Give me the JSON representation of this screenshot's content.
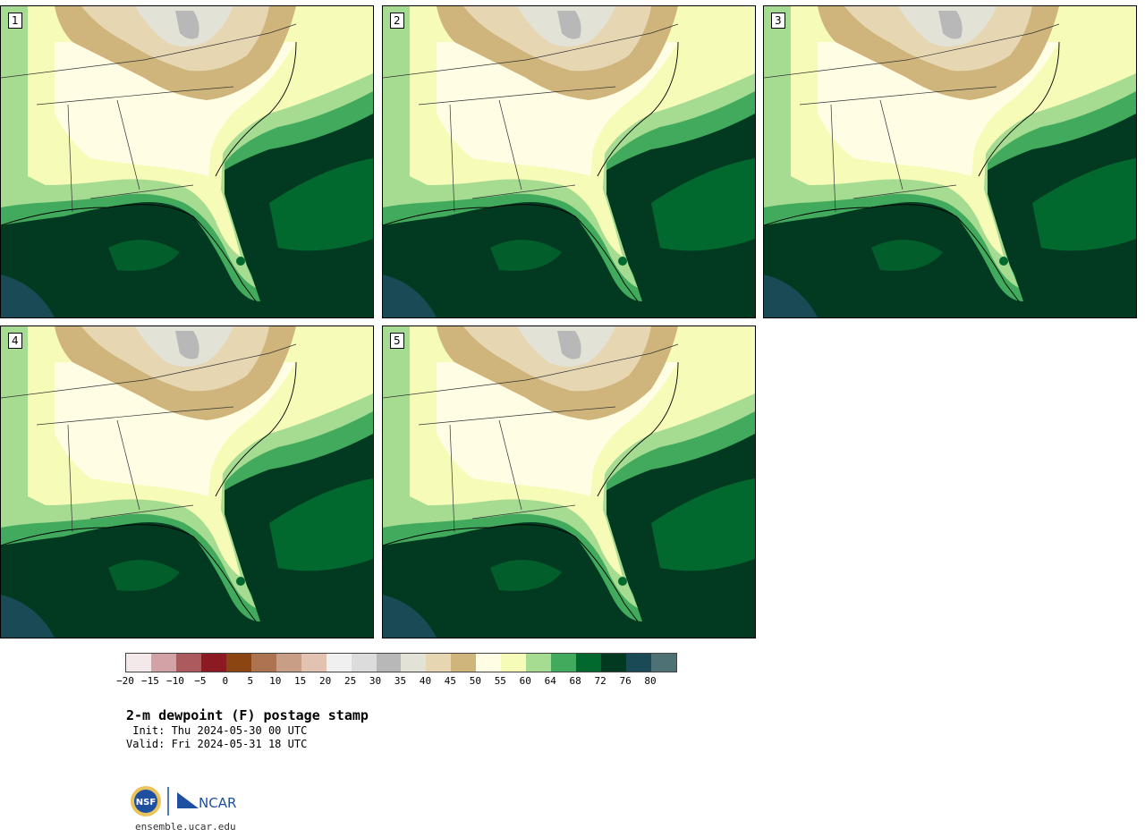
{
  "panels": [
    {
      "label": "1"
    },
    {
      "label": "2"
    },
    {
      "label": "3"
    },
    {
      "label": "4"
    },
    {
      "label": "5"
    }
  ],
  "colorbar": {
    "colors": [
      "#f4e9ea",
      "#d2a2a6",
      "#ad5a5f",
      "#8c1a23",
      "#8b4512",
      "#ad7451",
      "#c99e86",
      "#e2c3b2",
      "#f0f0f0",
      "#dcdcdc",
      "#b8b8b8",
      "#e2e2d6",
      "#e6d6b2",
      "#cfb57b",
      "#fffde4",
      "#f7fbb8",
      "#a6dc92",
      "#42aa5c",
      "#02692e",
      "#023a21",
      "#194a55",
      "#4d7175"
    ],
    "tick_labels": [
      "−20",
      "−15",
      "−10",
      "−5",
      "0",
      "5",
      "10",
      "15",
      "20",
      "25",
      "30",
      "35",
      "40",
      "45",
      "50",
      "55",
      "60",
      "64",
      "68",
      "72",
      "76",
      "80"
    ]
  },
  "title": "2-m dewpoint (F) postage stamp",
  "init_line": " Init: Thu 2024-05-30 00 UTC",
  "valid_line": "Valid: Fri 2024-05-31 18 UTC",
  "logo": {
    "nsf_text": "NSF",
    "ncar_text": "NCAR"
  },
  "site": "ensemble.ucar.edu"
}
